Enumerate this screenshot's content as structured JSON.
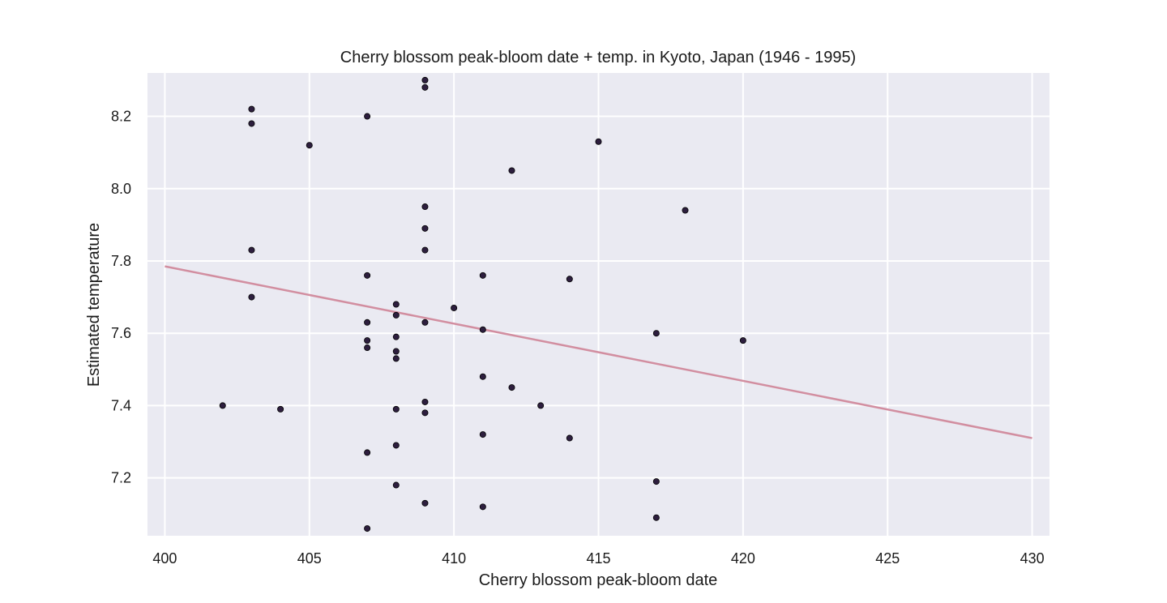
{
  "chart_data": {
    "type": "scatter",
    "title": "Cherry blossom peak-bloom date + temp. in Kyoto, Japan (1946 - 1995)",
    "xlabel": "Cherry blossom peak-bloom date",
    "ylabel": "Estimated temperature",
    "xlim": [
      399.4,
      430.6
    ],
    "ylim": [
      7.04,
      8.32
    ],
    "xticks": [
      400,
      405,
      410,
      415,
      420,
      425,
      430
    ],
    "yticks": [
      7.2,
      7.4,
      7.6,
      7.8,
      8.0,
      8.2
    ],
    "xtick_labels": [
      "400",
      "405",
      "410",
      "415",
      "420",
      "425",
      "430"
    ],
    "ytick_labels": [
      "7.2",
      "7.4",
      "7.6",
      "7.8",
      "8.0",
      "8.2"
    ],
    "grid": true,
    "background_color": "#eaeaf2",
    "point_color": "#2d1e3e",
    "line_color": "#d28ea0",
    "points": [
      [
        402,
        7.4
      ],
      [
        403,
        8.22
      ],
      [
        403,
        8.18
      ],
      [
        403,
        7.83
      ],
      [
        403,
        7.7
      ],
      [
        404,
        7.39
      ],
      [
        405,
        8.12
      ],
      [
        407,
        8.2
      ],
      [
        407,
        7.76
      ],
      [
        407,
        7.63
      ],
      [
        407,
        7.58
      ],
      [
        407,
        7.56
      ],
      [
        407,
        7.27
      ],
      [
        407,
        7.06
      ],
      [
        408,
        7.68
      ],
      [
        408,
        7.65
      ],
      [
        408,
        7.59
      ],
      [
        408,
        7.55
      ],
      [
        408,
        7.53
      ],
      [
        408,
        7.39
      ],
      [
        408,
        7.29
      ],
      [
        408,
        7.18
      ],
      [
        409,
        8.3
      ],
      [
        409,
        8.28
      ],
      [
        409,
        7.95
      ],
      [
        409,
        7.89
      ],
      [
        409,
        7.83
      ],
      [
        409,
        7.63
      ],
      [
        409,
        7.41
      ],
      [
        409,
        7.38
      ],
      [
        409,
        7.13
      ],
      [
        410,
        7.67
      ],
      [
        411,
        7.76
      ],
      [
        411,
        7.61
      ],
      [
        411,
        7.48
      ],
      [
        411,
        7.32
      ],
      [
        411,
        7.12
      ],
      [
        412,
        8.05
      ],
      [
        412,
        7.45
      ],
      [
        413,
        7.4
      ],
      [
        414,
        7.75
      ],
      [
        414,
        7.31
      ],
      [
        415,
        8.13
      ],
      [
        417,
        7.6
      ],
      [
        417,
        7.19
      ],
      [
        417,
        7.09
      ],
      [
        418,
        7.94
      ],
      [
        420,
        7.58
      ]
    ],
    "trend_line": {
      "x": [
        400,
        430
      ],
      "y": [
        7.785,
        7.31
      ]
    }
  }
}
